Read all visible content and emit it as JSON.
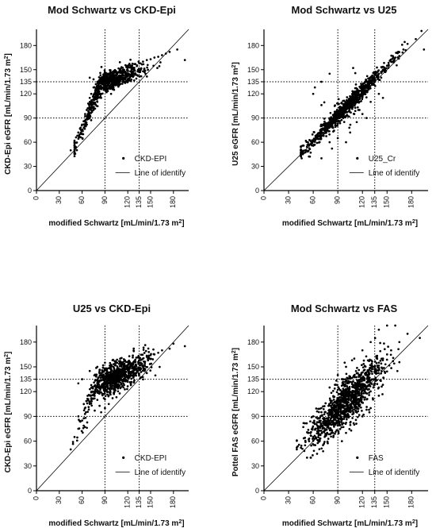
{
  "chart_data": [
    {
      "type": "scatter",
      "title": "Mod Schwartz vs CKD-Epi",
      "xlabel": "modified Schwartz [mL/min/1.73 m",
      "xlabel_sup": "2",
      "xlabel_end": "]",
      "ylabel": "CKD-Epi eGFR [mL/min/1.73 m",
      "ylabel_sup": "2",
      "ylabel_end": "]",
      "xlim": [
        0,
        200
      ],
      "ylim": [
        0,
        200
      ],
      "xticks": [
        0,
        30,
        60,
        90,
        120,
        135,
        150,
        180
      ],
      "yticks": [
        0,
        30,
        60,
        90,
        120,
        135,
        150,
        180
      ],
      "xtick_labels": [
        "0",
        "30",
        "60",
        "90",
        "120",
        "135",
        "150",
        "180"
      ],
      "ytick_labels": [
        "0",
        "30",
        "60",
        "90",
        "120",
        "135",
        "150",
        "180"
      ],
      "reference_lines": {
        "x": [
          90,
          135
        ],
        "y": [
          90,
          135
        ],
        "style": "dotted"
      },
      "identity_line": true,
      "legend": {
        "position": "bottom-right",
        "entries": [
          "CKD-EPI",
          "Line of identify"
        ]
      },
      "series": [
        {
          "name": "CKD-EPI",
          "pattern": "ckdepi",
          "points": [
            [
              45,
              50
            ],
            [
              50,
              62
            ],
            [
              52,
              66
            ],
            [
              55,
              72
            ],
            [
              58,
              78
            ],
            [
              60,
              82
            ],
            [
              62,
              86
            ],
            [
              64,
              95
            ],
            [
              66,
              100
            ],
            [
              68,
              108
            ],
            [
              70,
              115
            ],
            [
              72,
              120
            ],
            [
              75,
              128
            ],
            [
              78,
              132
            ],
            [
              80,
              135
            ],
            [
              82,
              136
            ],
            [
              85,
              140
            ],
            [
              88,
              142
            ],
            [
              90,
              143
            ],
            [
              92,
              138
            ],
            [
              95,
              140
            ],
            [
              98,
              142
            ],
            [
              100,
              144
            ],
            [
              105,
              146
            ],
            [
              110,
              148
            ],
            [
              115,
              150
            ],
            [
              120,
              153
            ],
            [
              125,
              155
            ],
            [
              130,
              157
            ],
            [
              135,
              158
            ],
            [
              140,
              160
            ],
            [
              145,
              162
            ],
            [
              150,
              163
            ],
            [
              155,
              165
            ],
            [
              160,
              166
            ],
            [
              165,
              168
            ],
            [
              170,
              170
            ],
            [
              175,
              172
            ],
            [
              185,
              175
            ],
            [
              195,
              162
            ],
            [
              70,
              140
            ],
            [
              75,
              138
            ],
            [
              80,
              130
            ],
            [
              85,
              120
            ],
            [
              90,
              125
            ],
            [
              95,
              130
            ],
            [
              100,
              132
            ],
            [
              105,
              135
            ],
            [
              110,
              138
            ],
            [
              115,
              140
            ],
            [
              120,
              142
            ],
            [
              125,
              143
            ],
            [
              130,
              145
            ],
            [
              135,
              147
            ],
            [
              140,
              148
            ],
            [
              60,
              70
            ],
            [
              65,
              80
            ],
            [
              70,
              90
            ],
            [
              75,
              100
            ],
            [
              80,
              110
            ],
            [
              85,
              115
            ],
            [
              92,
              128
            ],
            [
              98,
              120
            ],
            [
              102,
              125
            ]
          ]
        }
      ]
    },
    {
      "type": "scatter",
      "title": "Mod Schwartz vs U25",
      "xlabel": "modified Schwartz [mL/min/1.73 m",
      "xlabel_sup": "2",
      "xlabel_end": "]",
      "ylabel": "U25 eGFR [mL/min/1.73 m",
      "ylabel_sup": "2",
      "ylabel_end": "]",
      "xlim": [
        0,
        200
      ],
      "ylim": [
        0,
        200
      ],
      "xticks": [
        0,
        30,
        60,
        90,
        120,
        135,
        150,
        180
      ],
      "yticks": [
        0,
        30,
        60,
        90,
        120,
        135,
        150,
        180
      ],
      "xtick_labels": [
        "0",
        "30",
        "60",
        "90",
        "120",
        "135",
        "150",
        "180"
      ],
      "ytick_labels": [
        "0",
        "30",
        "60",
        "90",
        "120",
        "135",
        "150",
        "180"
      ],
      "reference_lines": {
        "x": [
          90,
          135
        ],
        "y": [
          90,
          135
        ],
        "style": "dotted"
      },
      "identity_line": true,
      "legend": {
        "position": "bottom-right",
        "entries": [
          "U25_Cr",
          "Line of identify"
        ]
      },
      "series": [
        {
          "name": "U25_Cr",
          "pattern": "u25",
          "points": [
            [
              45,
              45
            ],
            [
              50,
              50
            ],
            [
              55,
              56
            ],
            [
              60,
              62
            ],
            [
              65,
              67
            ],
            [
              70,
              73
            ],
            [
              75,
              78
            ],
            [
              80,
              83
            ],
            [
              85,
              88
            ],
            [
              90,
              94
            ],
            [
              95,
              99
            ],
            [
              100,
              104
            ],
            [
              105,
              109
            ],
            [
              110,
              114
            ],
            [
              115,
              119
            ],
            [
              120,
              124
            ],
            [
              125,
              129
            ],
            [
              130,
              134
            ],
            [
              135,
              139
            ],
            [
              140,
              145
            ],
            [
              145,
              150
            ],
            [
              150,
              155
            ],
            [
              155,
              160
            ],
            [
              160,
              165
            ],
            [
              170,
              175
            ],
            [
              175,
              182
            ],
            [
              185,
              188
            ],
            [
              192,
              198
            ],
            [
              195,
              175
            ],
            [
              60,
              120
            ],
            [
              62,
              128
            ],
            [
              70,
              135
            ],
            [
              80,
              145
            ],
            [
              110,
              95
            ],
            [
              115,
              100
            ],
            [
              130,
              110
            ],
            [
              80,
              60
            ],
            [
              90,
              65
            ],
            [
              100,
              60
            ],
            [
              105,
              72
            ],
            [
              120,
              95
            ],
            [
              125,
              90
            ],
            [
              140,
              120
            ],
            [
              145,
              115
            ]
          ]
        }
      ]
    },
    {
      "type": "scatter",
      "title": "U25 vs CKD-Epi",
      "xlabel": "modified Schwartz [mL/min/1.73 m",
      "xlabel_sup": "2",
      "xlabel_end": "]",
      "ylabel": "CKD-Epi eGFR [mL/min/1.73 m",
      "ylabel_sup": "2",
      "ylabel_end": "]",
      "xlim": [
        0,
        200
      ],
      "ylim": [
        0,
        200
      ],
      "xticks": [
        0,
        30,
        60,
        90,
        120,
        135,
        150,
        180
      ],
      "yticks": [
        0,
        30,
        60,
        90,
        120,
        135,
        150,
        180
      ],
      "xtick_labels": [
        "0",
        "30",
        "60",
        "90",
        "120",
        "135",
        "150",
        "180"
      ],
      "ytick_labels": [
        "0",
        "30",
        "60",
        "90",
        "120",
        "135",
        "150",
        "180"
      ],
      "reference_lines": {
        "x": [
          90,
          135
        ],
        "y": [
          90,
          135
        ],
        "style": "dotted"
      },
      "identity_line": true,
      "legend": {
        "position": "bottom-right",
        "entries": [
          "CKD-EPI",
          "Line of identify"
        ]
      },
      "series": [
        {
          "name": "CKD-EPI",
          "pattern": "u25ckd",
          "points": [
            [
              45,
              50
            ],
            [
              50,
              65
            ],
            [
              55,
              75
            ],
            [
              60,
              85
            ],
            [
              65,
              95
            ],
            [
              70,
              105
            ],
            [
              72,
              112
            ],
            [
              75,
              120
            ],
            [
              78,
              126
            ],
            [
              80,
              130
            ],
            [
              85,
              134
            ],
            [
              90,
              137
            ],
            [
              95,
              140
            ],
            [
              100,
              142
            ],
            [
              105,
              145
            ],
            [
              110,
              147
            ],
            [
              115,
              150
            ],
            [
              120,
              152
            ],
            [
              125,
              154
            ],
            [
              130,
              156
            ],
            [
              135,
              158
            ],
            [
              140,
              160
            ],
            [
              145,
              162
            ],
            [
              150,
              164
            ],
            [
              155,
              165
            ],
            [
              160,
              167
            ],
            [
              165,
              170
            ],
            [
              175,
              172
            ],
            [
              180,
              178
            ],
            [
              195,
              175
            ],
            [
              55,
              130
            ],
            [
              60,
              135
            ],
            [
              70,
              145
            ],
            [
              80,
              150
            ],
            [
              90,
              155
            ],
            [
              100,
              158
            ],
            [
              110,
              160
            ],
            [
              90,
              100
            ],
            [
              95,
              105
            ],
            [
              100,
              112
            ],
            [
              85,
              95
            ],
            [
              80,
              110
            ]
          ]
        }
      ]
    },
    {
      "type": "scatter",
      "title": "Mod Schwartz vs FAS",
      "xlabel": "modified Schwartz [mL/min/1.73 m",
      "xlabel_sup": "2",
      "xlabel_end": "]",
      "ylabel": "Pottel FAS eGFR [mL/min/1.73 m",
      "ylabel_sup": "2",
      "ylabel_end": "]",
      "xlim": [
        0,
        200
      ],
      "ylim": [
        0,
        200
      ],
      "xticks": [
        0,
        30,
        60,
        90,
        120,
        135,
        150,
        180
      ],
      "yticks": [
        0,
        30,
        60,
        90,
        120,
        135,
        150,
        180
      ],
      "xtick_labels": [
        "0",
        "30",
        "60",
        "90",
        "120",
        "135",
        "150",
        "180"
      ],
      "ytick_labels": [
        "0",
        "30",
        "60",
        "90",
        "120",
        "135",
        "150",
        "180"
      ],
      "reference_lines": {
        "x": [
          90,
          135
        ],
        "y": [
          90,
          135
        ],
        "style": "dotted"
      },
      "identity_line": true,
      "legend": {
        "position": "bottom-right",
        "entries": [
          "FAS",
          "Line of identify"
        ]
      },
      "series": [
        {
          "name": "FAS",
          "pattern": "fas",
          "points": [
            [
              40,
              50
            ],
            [
              45,
              52
            ],
            [
              50,
              55
            ],
            [
              55,
              60
            ],
            [
              60,
              65
            ],
            [
              65,
              72
            ],
            [
              70,
              78
            ],
            [
              75,
              85
            ],
            [
              80,
              92
            ],
            [
              85,
              98
            ],
            [
              90,
              105
            ],
            [
              95,
              110
            ],
            [
              100,
              115
            ],
            [
              105,
              120
            ],
            [
              110,
              125
            ],
            [
              115,
              130
            ],
            [
              120,
              135
            ],
            [
              125,
              140
            ],
            [
              130,
              145
            ],
            [
              135,
              150
            ],
            [
              140,
              155
            ],
            [
              145,
              160
            ],
            [
              150,
              165
            ],
            [
              155,
              170
            ],
            [
              165,
              180
            ],
            [
              175,
              190
            ],
            [
              190,
              185
            ],
            [
              95,
              60
            ],
            [
              100,
              70
            ],
            [
              110,
              80
            ],
            [
              120,
              90
            ],
            [
              130,
              100
            ],
            [
              140,
              115
            ],
            [
              80,
              125
            ],
            [
              90,
              140
            ],
            [
              100,
              150
            ],
            [
              110,
              160
            ],
            [
              120,
              170
            ],
            [
              130,
              180
            ],
            [
              140,
              195
            ],
            [
              150,
              200
            ],
            [
              160,
              200
            ],
            [
              70,
              100
            ],
            [
              60,
              90
            ]
          ]
        }
      ]
    }
  ]
}
